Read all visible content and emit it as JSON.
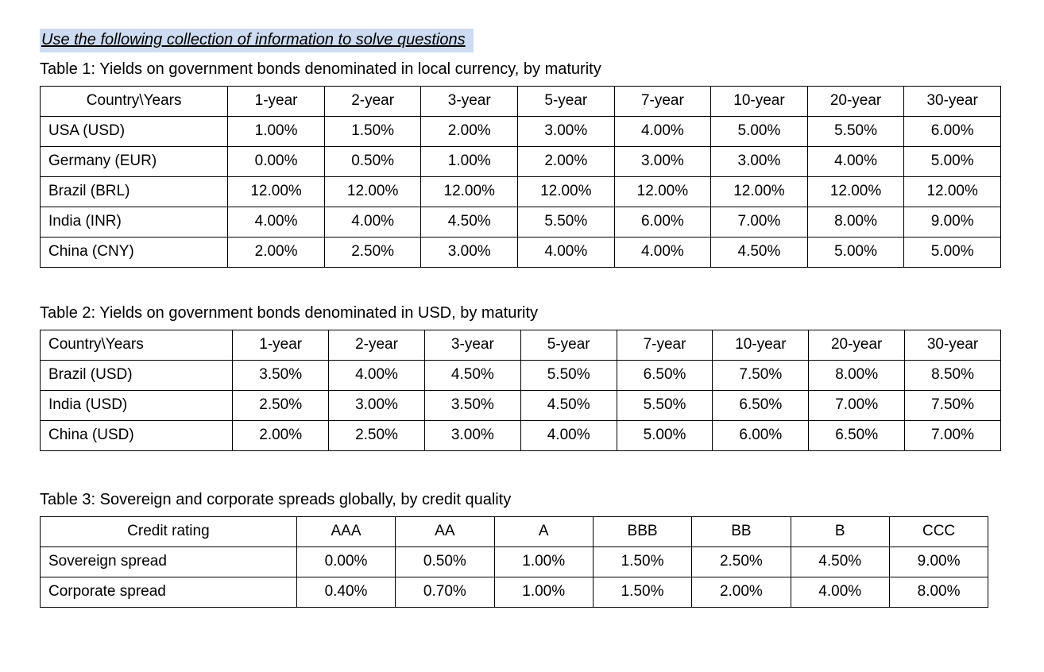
{
  "page": {
    "instruction": "Use the following collection of information to solve questions",
    "highlight_color": "#cddcf0",
    "border_color": "#000000"
  },
  "tables": [
    {
      "title": "Table 1: Yields on government bonds denominated in local currency, by maturity",
      "first_header_align": "center",
      "header": [
        "Country\\Years",
        "1-year",
        "2-year",
        "3-year",
        "5-year",
        "7-year",
        "10-year",
        "20-year",
        "30-year"
      ],
      "rows": [
        [
          "USA (USD)",
          "1.00%",
          "1.50%",
          "2.00%",
          "3.00%",
          "4.00%",
          "5.00%",
          "5.50%",
          "6.00%"
        ],
        [
          "Germany (EUR)",
          "0.00%",
          "0.50%",
          "1.00%",
          "2.00%",
          "3.00%",
          "3.00%",
          "4.00%",
          "5.00%"
        ],
        [
          "Brazil (BRL)",
          "12.00%",
          "12.00%",
          "12.00%",
          "12.00%",
          "12.00%",
          "12.00%",
          "12.00%",
          "12.00%"
        ],
        [
          "India (INR)",
          "4.00%",
          "4.00%",
          "4.50%",
          "5.50%",
          "6.00%",
          "7.00%",
          "8.00%",
          "9.00%"
        ],
        [
          "China (CNY)",
          "2.00%",
          "2.50%",
          "3.00%",
          "4.00%",
          "4.00%",
          "4.50%",
          "5.00%",
          "5.00%"
        ]
      ]
    },
    {
      "title": "Table 2: Yields on government bonds denominated in USD, by maturity",
      "first_header_align": "left",
      "header": [
        "Country\\Years",
        "1-year",
        "2-year",
        "3-year",
        "5-year",
        "7-year",
        "10-year",
        "20-year",
        "30-year"
      ],
      "rows": [
        [
          "Brazil (USD)",
          "3.50%",
          "4.00%",
          "4.50%",
          "5.50%",
          "6.50%",
          "7.50%",
          "8.00%",
          "8.50%"
        ],
        [
          "India (USD)",
          "2.50%",
          "3.00%",
          "3.50%",
          "4.50%",
          "5.50%",
          "6.50%",
          "7.00%",
          "7.50%"
        ],
        [
          "China (USD)",
          "2.00%",
          "2.50%",
          "3.00%",
          "4.00%",
          "5.00%",
          "6.00%",
          "6.50%",
          "7.00%"
        ]
      ]
    },
    {
      "title": "Table 3: Sovereign and corporate spreads globally, by credit quality",
      "first_header_align": "center",
      "header": [
        "Credit rating",
        "AAA",
        "AA",
        "A",
        "BBB",
        "BB",
        "B",
        "CCC"
      ],
      "rows": [
        [
          "Sovereign spread",
          "0.00%",
          "0.50%",
          "1.00%",
          "1.50%",
          "2.50%",
          "4.50%",
          "9.00%"
        ],
        [
          "Corporate spread",
          "0.40%",
          "0.70%",
          "1.00%",
          "1.50%",
          "2.00%",
          "4.00%",
          "8.00%"
        ]
      ]
    }
  ]
}
